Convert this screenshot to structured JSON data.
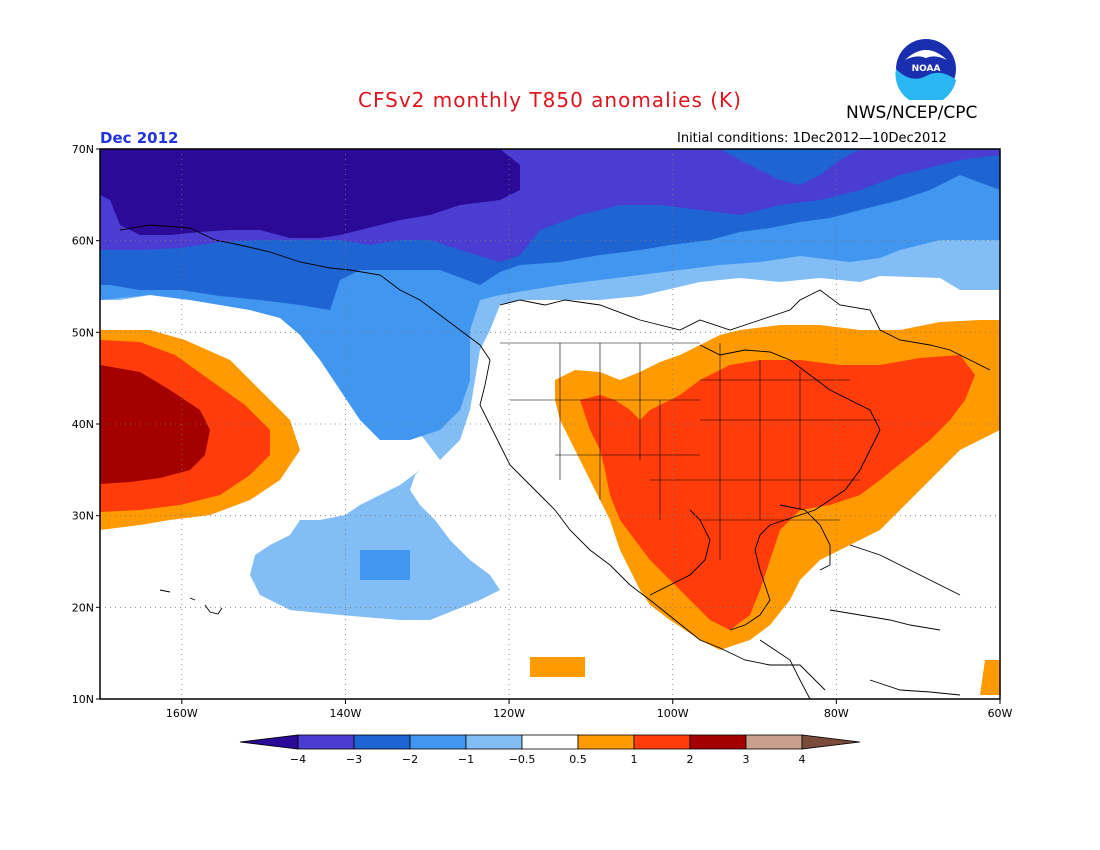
{
  "header": {
    "title": "CFSv2 monthly T850 anomalies (K)",
    "agency": "NWS/NCEP/CPC",
    "period": "Dec 2012",
    "initial_conditions": "Initial conditions: 1Dec2012—10Dec2012",
    "logo_text": "NOAA"
  },
  "axes": {
    "lat_labels": [
      "70N",
      "60N",
      "50N",
      "40N",
      "30N",
      "20N",
      "10N"
    ],
    "lon_labels": [
      "160W",
      "140W",
      "120W",
      "100W",
      "80W",
      "60W"
    ]
  },
  "colorbar": {
    "labels": [
      "−4",
      "−3",
      "−2",
      "−1",
      "−0.5",
      "0.5",
      "1",
      "2",
      "3",
      "4"
    ],
    "colors": [
      "#2a0a96",
      "#4b3cd2",
      "#1e64d2",
      "#4196f0",
      "#82bef5",
      "#ffffff",
      "#ff9b00",
      "#ff3c0a",
      "#a50000",
      "#c8a08c",
      "#7a4a3a"
    ]
  },
  "colors": {
    "ocean_line": "#000000",
    "grid": "#777777"
  }
}
